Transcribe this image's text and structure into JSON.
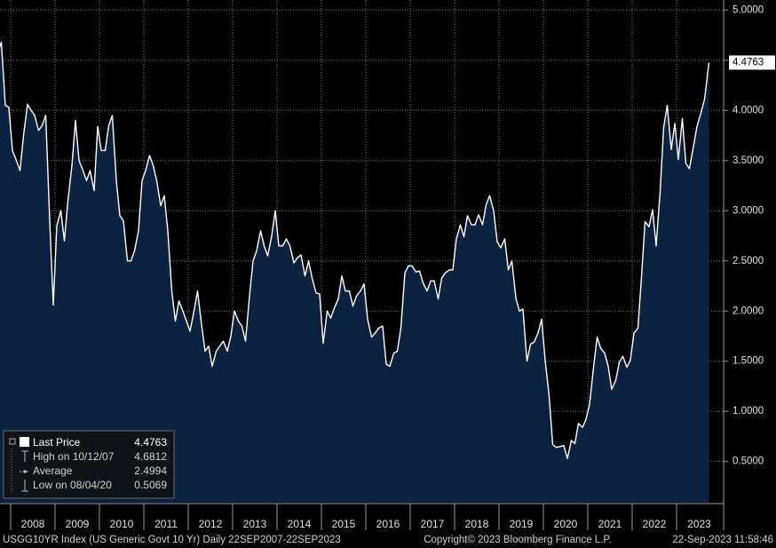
{
  "chart_data": {
    "type": "line",
    "series": [
      {
        "name": "Last Price",
        "color": "#ffffff",
        "fill": "#0c2241",
        "x": [
          2007.73,
          2007.79,
          2007.88,
          2007.96,
          2008.04,
          2008.13,
          2008.21,
          2008.29,
          2008.38,
          2008.46,
          2008.54,
          2008.63,
          2008.71,
          2008.79,
          2008.88,
          2008.96,
          2009.04,
          2009.13,
          2009.21,
          2009.29,
          2009.38,
          2009.46,
          2009.54,
          2009.63,
          2009.71,
          2009.79,
          2009.88,
          2009.96,
          2010.04,
          2010.13,
          2010.21,
          2010.29,
          2010.38,
          2010.46,
          2010.54,
          2010.63,
          2010.71,
          2010.79,
          2010.88,
          2010.96,
          2011.04,
          2011.13,
          2011.21,
          2011.29,
          2011.38,
          2011.46,
          2011.54,
          2011.63,
          2011.71,
          2011.79,
          2011.88,
          2011.96,
          2012.04,
          2012.13,
          2012.21,
          2012.29,
          2012.38,
          2012.46,
          2012.54,
          2012.63,
          2012.71,
          2012.79,
          2012.88,
          2012.96,
          2013.04,
          2013.13,
          2013.21,
          2013.29,
          2013.38,
          2013.46,
          2013.54,
          2013.63,
          2013.71,
          2013.79,
          2013.88,
          2013.96,
          2014.04,
          2014.13,
          2014.21,
          2014.29,
          2014.38,
          2014.46,
          2014.54,
          2014.63,
          2014.71,
          2014.79,
          2014.88,
          2014.96,
          2015.04,
          2015.13,
          2015.21,
          2015.29,
          2015.38,
          2015.46,
          2015.54,
          2015.63,
          2015.71,
          2015.79,
          2015.88,
          2015.96,
          2016.04,
          2016.13,
          2016.21,
          2016.29,
          2016.38,
          2016.46,
          2016.54,
          2016.63,
          2016.71,
          2016.79,
          2016.88,
          2016.96,
          2017.04,
          2017.13,
          2017.21,
          2017.29,
          2017.38,
          2017.46,
          2017.54,
          2017.63,
          2017.71,
          2017.79,
          2017.88,
          2017.96,
          2018.04,
          2018.13,
          2018.21,
          2018.29,
          2018.38,
          2018.46,
          2018.54,
          2018.63,
          2018.71,
          2018.79,
          2018.88,
          2018.96,
          2019.04,
          2019.13,
          2019.21,
          2019.29,
          2019.38,
          2019.46,
          2019.54,
          2019.63,
          2019.71,
          2019.79,
          2019.88,
          2019.96,
          2020.04,
          2020.13,
          2020.21,
          2020.29,
          2020.38,
          2020.46,
          2020.54,
          2020.63,
          2020.71,
          2020.79,
          2020.88,
          2020.96,
          2021.04,
          2021.13,
          2021.21,
          2021.29,
          2021.38,
          2021.46,
          2021.54,
          2021.63,
          2021.71,
          2021.79,
          2021.88,
          2021.96,
          2022.04,
          2022.13,
          2022.21,
          2022.29,
          2022.38,
          2022.46,
          2022.54,
          2022.63,
          2022.71,
          2022.79,
          2022.88,
          2022.96,
          2023.04,
          2023.13,
          2023.21,
          2023.29,
          2023.38,
          2023.46,
          2023.54,
          2023.63,
          2023.73
        ],
        "values": [
          4.6,
          4.68,
          4.05,
          4.03,
          3.6,
          3.5,
          3.4,
          3.75,
          4.06,
          4.0,
          3.95,
          3.8,
          3.85,
          3.95,
          2.9,
          2.06,
          2.85,
          3.0,
          2.7,
          3.1,
          3.45,
          3.9,
          3.5,
          3.4,
          3.3,
          3.4,
          3.2,
          3.84,
          3.6,
          3.6,
          3.85,
          3.95,
          3.3,
          2.95,
          2.9,
          2.5,
          2.5,
          2.6,
          2.8,
          3.3,
          3.4,
          3.55,
          3.45,
          3.3,
          3.05,
          3.15,
          2.8,
          2.2,
          1.9,
          2.1,
          2.0,
          1.9,
          1.8,
          2.0,
          2.2,
          1.9,
          1.6,
          1.65,
          1.45,
          1.6,
          1.65,
          1.7,
          1.6,
          1.75,
          2.0,
          1.9,
          1.85,
          1.7,
          2.15,
          2.5,
          2.6,
          2.8,
          2.65,
          2.55,
          2.75,
          3.0,
          2.65,
          2.65,
          2.72,
          2.65,
          2.48,
          2.53,
          2.56,
          2.35,
          2.5,
          2.33,
          2.18,
          2.17,
          1.68,
          2.0,
          1.93,
          2.03,
          2.12,
          2.35,
          2.2,
          2.2,
          2.05,
          2.15,
          2.2,
          2.27,
          1.92,
          1.74,
          1.78,
          1.83,
          1.85,
          1.47,
          1.45,
          1.58,
          1.6,
          1.83,
          2.38,
          2.45,
          2.45,
          2.39,
          2.4,
          2.28,
          2.2,
          2.3,
          2.3,
          2.12,
          2.33,
          2.38,
          2.41,
          2.41,
          2.72,
          2.86,
          2.74,
          2.95,
          2.86,
          2.86,
          2.96,
          2.86,
          3.06,
          3.15,
          3.0,
          2.69,
          2.63,
          2.72,
          2.41,
          2.5,
          2.13,
          2.0,
          2.02,
          1.5,
          1.67,
          1.69,
          1.78,
          1.92,
          1.51,
          1.15,
          0.67,
          0.64,
          0.65,
          0.66,
          0.53,
          0.71,
          0.68,
          0.88,
          0.84,
          0.92,
          1.07,
          1.44,
          1.74,
          1.63,
          1.58,
          1.45,
          1.22,
          1.31,
          1.49,
          1.55,
          1.44,
          1.51,
          1.78,
          1.83,
          2.34,
          2.89,
          2.84,
          3.01,
          2.65,
          3.19,
          3.83,
          4.05,
          3.61,
          3.87,
          3.51,
          3.92,
          3.47,
          3.42,
          3.64,
          3.84,
          3.96,
          4.11,
          4.4763
        ]
      }
    ],
    "xlim": [
      2007.76,
      2024.06
    ],
    "xticks": [
      2008,
      2009,
      2010,
      2011,
      2012,
      2013,
      2014,
      2015,
      2016,
      2017,
      2018,
      2019,
      2020,
      2021,
      2022,
      2023
    ],
    "ylim": [
      0.09,
      5.1
    ],
    "yticks": [
      {
        "value": 0.5,
        "label": "0.5000"
      },
      {
        "value": 1,
        "label": "1.0000"
      },
      {
        "value": 1.5,
        "label": "1.5000"
      },
      {
        "value": 2,
        "label": "2.0000"
      },
      {
        "value": 2.5,
        "label": "2.5000"
      },
      {
        "value": 3,
        "label": "3.0000"
      },
      {
        "value": 3.5,
        "label": "3.5000"
      },
      {
        "value": 4,
        "label": "4.0000"
      },
      {
        "value": 4.5,
        "label": "4.5000"
      },
      {
        "value": 5,
        "label": "5.0000"
      }
    ],
    "grid": true,
    "legend": {
      "items": [
        {
          "label": "Last Price",
          "value": 4.4763
        },
        {
          "label": "High on 10/12/07",
          "value": 4.6812
        },
        {
          "label": "Average",
          "value": 2.4994
        },
        {
          "label": "Low on 08/04/20",
          "value": 0.5069
        }
      ]
    },
    "footer": {
      "left": "USGG10YR Index (US Generic Govt 10 Yr)  Daily 22SEP2007-22SEP2023",
      "center": "Copyright© 2023 Bloomberg Finance L.P.",
      "right": "22-Sep-2023 11:58:46"
    }
  }
}
